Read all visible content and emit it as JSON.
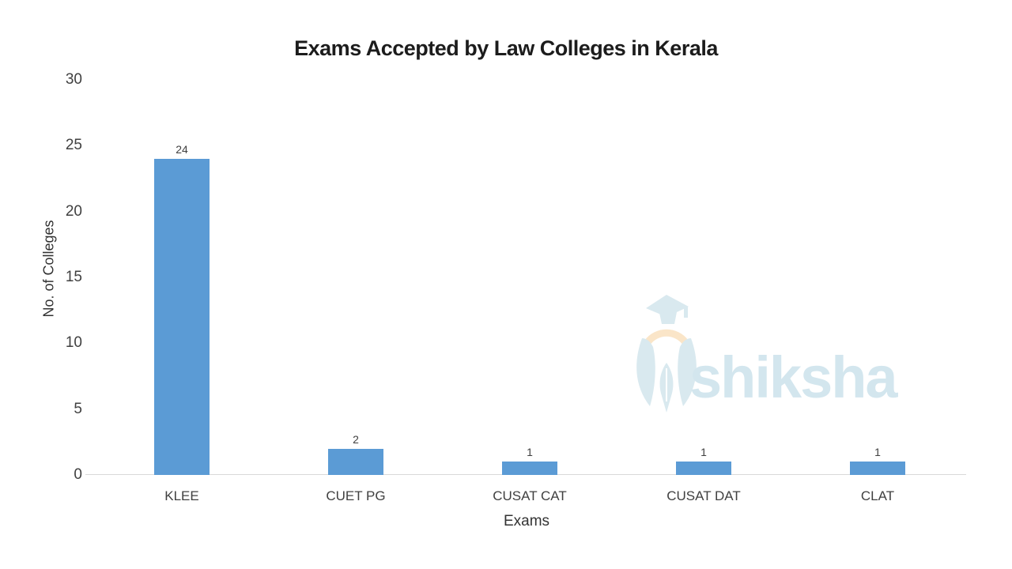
{
  "chart_data": {
    "type": "bar",
    "title": "Exams Accepted by Law Colleges in Kerala",
    "xlabel": "Exams",
    "ylabel": "No. of Colleges",
    "categories": [
      "KLEE",
      "CUET PG",
      "CUSAT CAT",
      "CUSAT DAT",
      "CLAT"
    ],
    "values": [
      24,
      2,
      1,
      1,
      1
    ],
    "ylim": [
      0,
      30
    ],
    "yticks": [
      0,
      5,
      10,
      15,
      20,
      25,
      30
    ],
    "grid": false,
    "legend": "none",
    "bar_color": "#5B9BD5",
    "axis_line_color": "#d9d9d9",
    "tick_label_color": "#404040",
    "title_color": "#1c1c1c"
  },
  "watermark": {
    "brand": "shiksha",
    "text_color": "#d3e6ee",
    "logo_blue": "#d9e9ef",
    "logo_peach": "#fae5c8"
  }
}
